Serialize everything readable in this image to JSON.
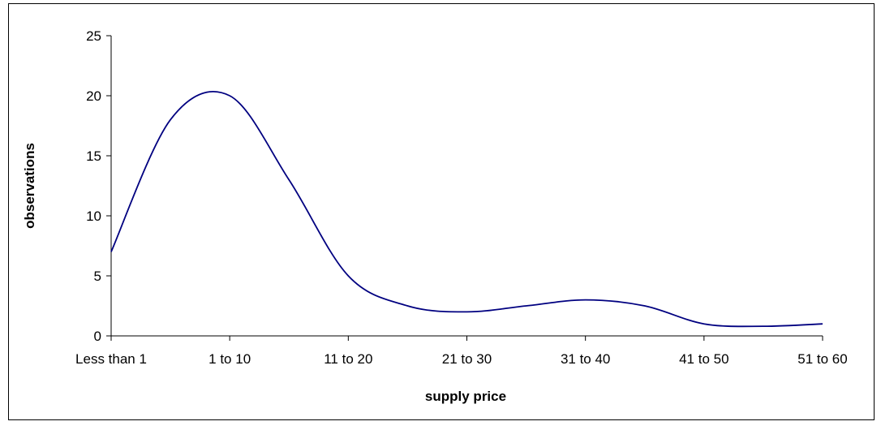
{
  "chart_data": {
    "type": "line",
    "title": "",
    "xlabel": "supply price",
    "ylabel": "observations",
    "categories": [
      "Less than 1",
      "1 to 10",
      "11 to 20",
      "21 to 30",
      "31 to 40",
      "41 to 50",
      "51 to 60"
    ],
    "series": [
      {
        "x": [
          0,
          0.5,
          1,
          1.5,
          2,
          2.5,
          3,
          3.5,
          4,
          4.5,
          5,
          5.5,
          6
        ],
        "values": [
          7,
          18,
          20,
          13,
          5,
          2.5,
          2,
          2.5,
          3,
          2.5,
          1,
          0.8,
          1
        ],
        "color": "#000080"
      }
    ],
    "ylim": [
      0,
      25
    ],
    "yticks": [
      0,
      5,
      10,
      15,
      20,
      25
    ],
    "grid": false,
    "legend": "none"
  }
}
